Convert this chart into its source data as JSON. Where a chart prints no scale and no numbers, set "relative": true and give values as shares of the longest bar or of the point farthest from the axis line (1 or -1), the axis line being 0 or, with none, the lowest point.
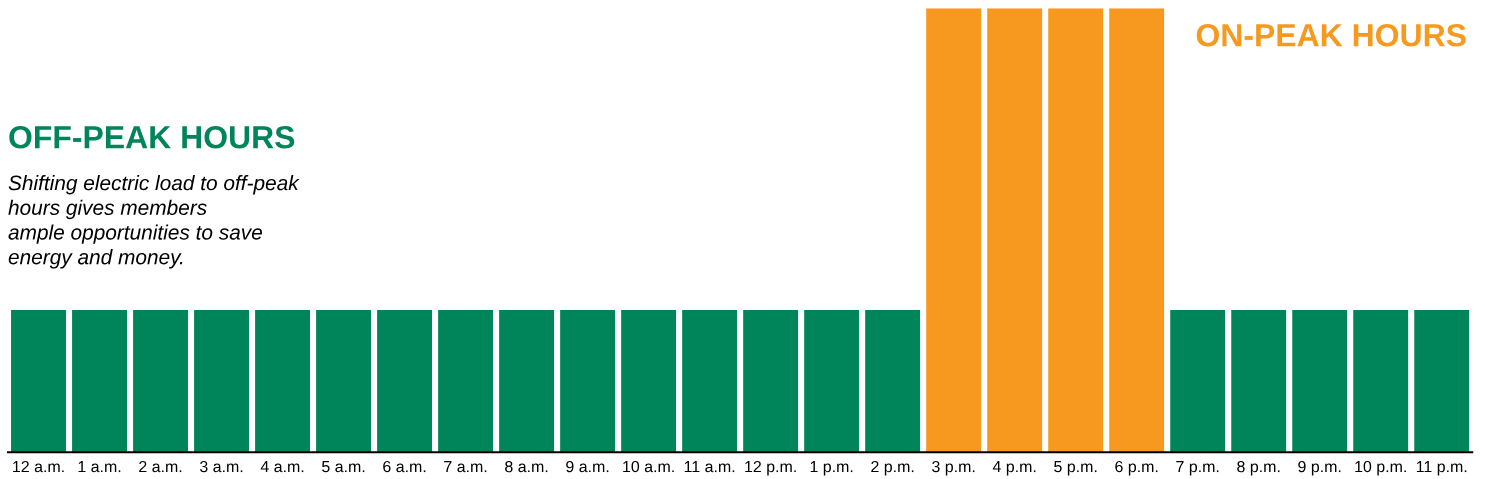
{
  "chart_data": {
    "type": "bar",
    "relative": true,
    "tick_labels": "x",
    "grid": false,
    "legend": false,
    "categories": [
      "12 a.m.",
      "1 a.m.",
      "2 a.m.",
      "3 a.m.",
      "4 a.m.",
      "5 a.m.",
      "6 a.m.",
      "7 a.m.",
      "8 a.m.",
      "9 a.m.",
      "10 a.m.",
      "11 a.m.",
      "12 p.m.",
      "1 p.m.",
      "2 p.m.",
      "3 p.m.",
      "4 p.m.",
      "5 p.m.",
      "6 p.m.",
      "7 p.m.",
      "8 p.m.",
      "9 p.m.",
      "10 p.m.",
      "11 p.m."
    ],
    "series": [
      {
        "name": "OFF-PEAK HOURS",
        "color": "#00845a",
        "values": [
          0.32,
          0.32,
          0.32,
          0.32,
          0.32,
          0.32,
          0.32,
          0.32,
          0.32,
          0.32,
          0.32,
          0.32,
          0.32,
          0.32,
          0.32,
          null,
          null,
          null,
          null,
          0.32,
          0.32,
          0.32,
          0.32,
          0.32
        ]
      },
      {
        "name": "ON-PEAK HOURS",
        "color": "#f7991f",
        "values": [
          null,
          null,
          null,
          null,
          null,
          null,
          null,
          null,
          null,
          null,
          null,
          null,
          null,
          null,
          null,
          1,
          1,
          1,
          1,
          null,
          null,
          null,
          null,
          null
        ]
      }
    ],
    "annotations": [
      "Shifting electric load to off-peak\nhours gives members\nample opportunities to save\nenergy and money."
    ]
  }
}
